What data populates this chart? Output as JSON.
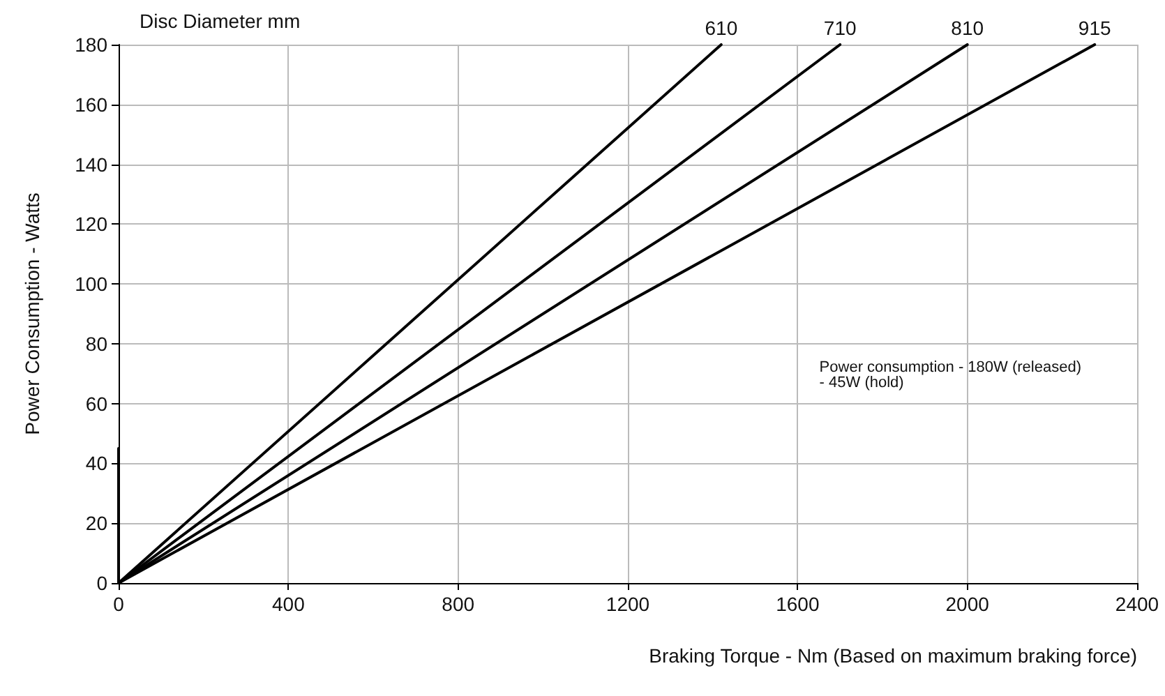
{
  "chart_data": {
    "type": "line",
    "xlabel": "Braking Torque - Nm (Based on maximum braking force)",
    "ylabel": "Power Consumption - Watts",
    "series": [
      {
        "name": "610",
        "color": "#000000",
        "x": [
          0,
          1420
        ],
        "values": [
          0,
          180
        ]
      },
      {
        "name": "710",
        "color": "#000000",
        "x": [
          0,
          1700
        ],
        "values": [
          0,
          180
        ]
      },
      {
        "name": "810",
        "color": "#000000",
        "x": [
          0,
          2000
        ],
        "values": [
          0,
          180
        ]
      },
      {
        "name": "915",
        "color": "#000000",
        "x": [
          0,
          2300
        ],
        "values": [
          0,
          180
        ]
      },
      {
        "color": "#000000",
        "x": [
          0,
          0
        ],
        "values": [
          0,
          45
        ]
      }
    ],
    "annotations": [
      "Disc Diameter mm",
      "Power consumption - 180W (released)\n- 45W (hold)"
    ],
    "xlim": [
      0,
      2400
    ],
    "xticks": [
      0,
      400,
      800,
      1200,
      1600,
      2000,
      2400
    ],
    "ylim": [
      0,
      180
    ],
    "yticks": [
      0,
      20,
      40,
      60,
      80,
      100,
      120,
      140,
      160,
      180
    ],
    "grid": true,
    "legend": false,
    "marker": "none",
    "line_style": "solid"
  }
}
